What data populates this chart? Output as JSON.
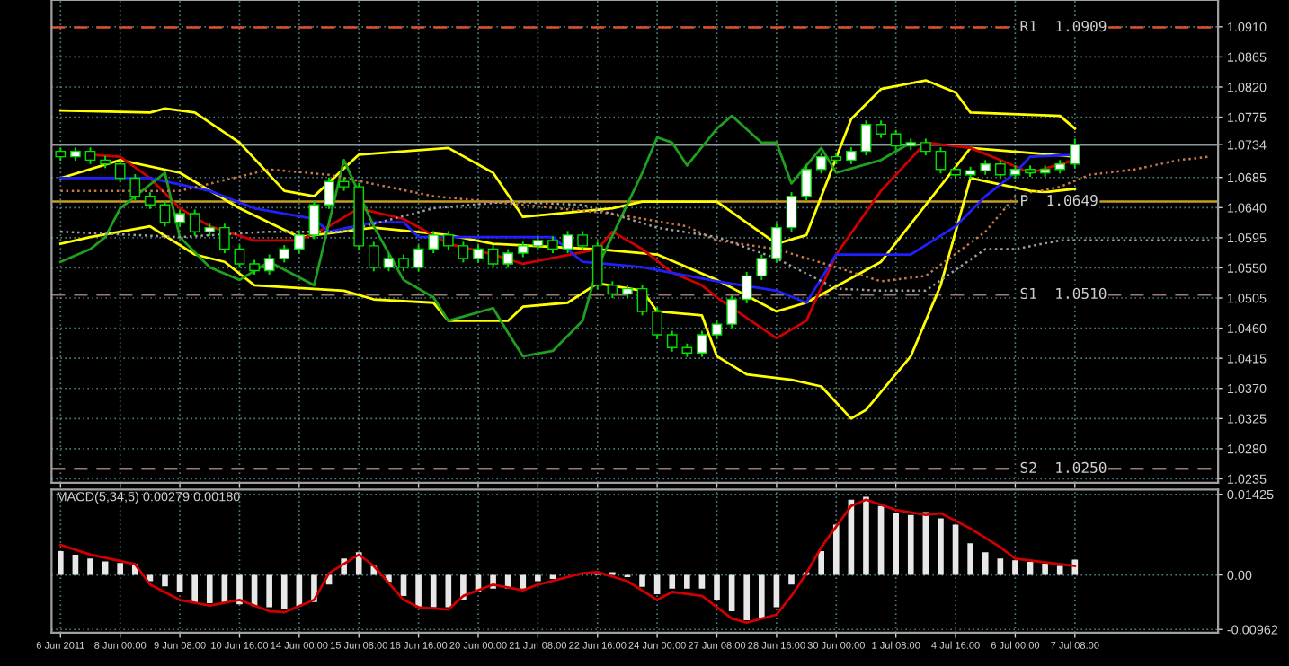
{
  "chart_data": [
    {
      "type": "candlestick",
      "categories": [
        null,
        null,
        null,
        null,
        null,
        null,
        null,
        null,
        null,
        null,
        null,
        null,
        null,
        null,
        null,
        null,
        null,
        null,
        null,
        null,
        null,
        null,
        null,
        null,
        null,
        null,
        null,
        null,
        null,
        null,
        null,
        null,
        null,
        null,
        null,
        null,
        null,
        null,
        null,
        null,
        null,
        null,
        null,
        null,
        null,
        null,
        null,
        null,
        null,
        null,
        null,
        null,
        null,
        null,
        null,
        null,
        null,
        null,
        null,
        null,
        null,
        null,
        null,
        null,
        null,
        null,
        null,
        null,
        null,
        null,
        null,
        null,
        null,
        null,
        null,
        null,
        null,
        null
      ],
      "ohlc": [
        [
          1.0724,
          1.073,
          1.071,
          1.0716
        ],
        [
          1.0716,
          1.073,
          1.071,
          1.0724
        ],
        [
          1.0724,
          1.073,
          1.0705,
          1.0711
        ],
        [
          1.0711,
          1.0717,
          1.0699,
          1.0705
        ],
        [
          1.0705,
          1.0711,
          1.0678,
          1.0684
        ],
        [
          1.0684,
          1.069,
          1.0651,
          1.0657
        ],
        [
          1.0657,
          1.0663,
          1.0638,
          1.0644
        ],
        [
          1.0644,
          1.065,
          1.0612,
          1.0618
        ],
        [
          1.0618,
          1.0637,
          1.0612,
          1.0631
        ],
        [
          1.0631,
          1.0637,
          1.0598,
          1.0604
        ],
        [
          1.0604,
          1.0616,
          1.0598,
          1.061
        ],
        [
          1.061,
          1.0616,
          1.0572,
          1.0578
        ],
        [
          1.0578,
          1.0584,
          1.055,
          1.0556
        ],
        [
          1.0556,
          1.0562,
          1.054,
          1.0546
        ],
        [
          1.0546,
          1.057,
          1.054,
          1.0564
        ],
        [
          1.0564,
          1.0584,
          1.0558,
          1.0578
        ],
        [
          1.0578,
          1.0605,
          1.0572,
          1.0599
        ],
        [
          1.0599,
          1.065,
          1.0593,
          1.0644
        ],
        [
          1.0644,
          1.0685,
          1.0638,
          1.0679
        ],
        [
          1.0679,
          1.0685,
          1.0665,
          1.0671
        ],
        [
          1.0671,
          1.0677,
          1.0577,
          1.0583
        ],
        [
          1.0583,
          1.0589,
          1.0545,
          1.0551
        ],
        [
          1.0551,
          1.057,
          1.0545,
          1.0564
        ],
        [
          1.0564,
          1.057,
          1.0545,
          1.0551
        ],
        [
          1.0551,
          1.0584,
          1.0545,
          1.0578
        ],
        [
          1.0578,
          1.0605,
          1.0572,
          1.0599
        ],
        [
          1.0599,
          1.0605,
          1.0577,
          1.0583
        ],
        [
          1.0583,
          1.0589,
          1.0558,
          1.0564
        ],
        [
          1.0564,
          1.0584,
          1.0558,
          1.0578
        ],
        [
          1.0578,
          1.0584,
          1.055,
          1.0556
        ],
        [
          1.0556,
          1.0578,
          1.055,
          1.0572
        ],
        [
          1.0572,
          1.0589,
          1.0566,
          1.0583
        ],
        [
          1.0583,
          1.0597,
          1.0577,
          1.0591
        ],
        [
          1.0591,
          1.0597,
          1.0572,
          1.0578
        ],
        [
          1.0578,
          1.0605,
          1.0572,
          1.0599
        ],
        [
          1.0599,
          1.0605,
          1.0577,
          1.0583
        ],
        [
          1.0583,
          1.0589,
          1.0518,
          1.0524
        ],
        [
          1.0524,
          1.053,
          1.0505,
          1.0511
        ],
        [
          1.0511,
          1.0525,
          1.0505,
          1.0519
        ],
        [
          1.0519,
          1.0525,
          1.0479,
          1.0485
        ],
        [
          1.0485,
          1.0491,
          1.0444,
          1.045
        ],
        [
          1.045,
          1.0456,
          1.0425,
          1.0431
        ],
        [
          1.0431,
          1.0437,
          1.0417,
          1.0423
        ],
        [
          1.0423,
          1.0456,
          1.0417,
          1.045
        ],
        [
          1.045,
          1.0472,
          1.0444,
          1.0466
        ],
        [
          1.0466,
          1.0509,
          1.046,
          1.0503
        ],
        [
          1.0503,
          1.0544,
          1.0497,
          1.0538
        ],
        [
          1.0538,
          1.057,
          1.0532,
          1.0564
        ],
        [
          1.0564,
          1.0616,
          1.0558,
          1.061
        ],
        [
          1.061,
          1.0663,
          1.0604,
          1.0657
        ],
        [
          1.0657,
          1.0703,
          1.0651,
          1.0697
        ],
        [
          1.0697,
          1.0722,
          1.0691,
          1.0716
        ],
        [
          1.0716,
          1.0722,
          1.0705,
          1.0711
        ],
        [
          1.0711,
          1.073,
          1.0705,
          1.0724
        ],
        [
          1.0724,
          1.077,
          1.0718,
          1.0764
        ],
        [
          1.0764,
          1.077,
          1.0744,
          1.075
        ],
        [
          1.075,
          1.0756,
          1.0726,
          1.0732
        ],
        [
          1.0732,
          1.0743,
          1.0726,
          1.0737
        ],
        [
          1.0737,
          1.0743,
          1.0718,
          1.0724
        ],
        [
          1.0724,
          1.073,
          1.0691,
          1.0697
        ],
        [
          1.0697,
          1.0703,
          1.0683,
          1.0689
        ],
        [
          1.0689,
          1.0701,
          1.0683,
          1.0695
        ],
        [
          1.0695,
          1.0711,
          1.0689,
          1.0705
        ],
        [
          1.0705,
          1.0711,
          1.0683,
          1.0689
        ],
        [
          1.0689,
          1.0703,
          1.0683,
          1.0697
        ],
        [
          1.0697,
          1.0703,
          1.0686,
          1.0692
        ],
        [
          1.0692,
          1.0703,
          1.0686,
          1.0697
        ],
        [
          1.0697,
          1.0711,
          1.0691,
          1.0705
        ],
        [
          1.0705,
          1.0743,
          1.0699,
          1.0734
        ],
        null,
        null,
        null,
        null,
        null,
        null,
        null,
        null,
        null
      ],
      "series": [
        {
          "type": "line",
          "color": "#ffff00",
          "values": [
            1.0785,
            null,
            null,
            null,
            null,
            null,
            1.0782,
            1.0788,
            null,
            1.0782,
            null,
            null,
            1.0737,
            null,
            null,
            1.0665,
            null,
            1.0657,
            null,
            null,
            1.0719,
            null,
            null,
            null,
            null,
            null,
            1.0729,
            null,
            null,
            1.0692,
            null,
            1.0626,
            null,
            null,
            null,
            null,
            null,
            1.0639,
            null,
            1.0649,
            null,
            null,
            null,
            null,
            1.0649,
            null,
            null,
            null,
            1.0586,
            null,
            1.0599,
            null,
            null,
            1.0772,
            null,
            1.0817,
            null,
            null,
            1.083,
            null,
            1.0812,
            1.0782,
            null,
            null,
            null,
            null,
            null,
            1.0777,
            1.0758,
            null,
            null,
            null,
            null,
            null,
            null,
            null,
            null,
            null
          ]
        },
        {
          "type": "line",
          "color": "#ffff00",
          "values": [
            1.0684,
            null,
            null,
            null,
            1.0711,
            null,
            null,
            null,
            1.0692,
            null,
            null,
            null,
            1.0639,
            null,
            null,
            null,
            1.0596,
            null,
            null,
            null,
            null,
            1.061,
            null,
            null,
            null,
            null,
            1.0599,
            null,
            null,
            1.0586,
            null,
            null,
            null,
            null,
            null,
            null,
            1.0578,
            null,
            null,
            null,
            1.057,
            null,
            null,
            null,
            1.0532,
            null,
            null,
            null,
            1.0485,
            null,
            1.0498,
            null,
            null,
            null,
            null,
            1.0559,
            null,
            null,
            null,
            null,
            null,
            1.0729,
            null,
            null,
            null,
            null,
            null,
            null,
            1.0716,
            null,
            null,
            null,
            null,
            null,
            null,
            null,
            null,
            null
          ]
        },
        {
          "type": "line",
          "color": "#ffff00",
          "values": [
            1.0586,
            null,
            1.0596,
            null,
            null,
            null,
            1.0612,
            null,
            null,
            1.057,
            null,
            1.0559,
            null,
            1.0524,
            null,
            null,
            null,
            null,
            null,
            1.0516,
            null,
            1.0503,
            null,
            null,
            null,
            1.0498,
            1.0471,
            null,
            null,
            null,
            1.0471,
            1.0492,
            null,
            null,
            1.0498,
            null,
            1.0527,
            null,
            null,
            1.0516,
            1.0485,
            null,
            null,
            1.0479,
            1.0418,
            null,
            1.0391,
            null,
            null,
            1.0383,
            null,
            1.0373,
            null,
            1.0325,
            1.0338,
            null,
            null,
            1.0418,
            null,
            1.0524,
            null,
            1.0684,
            null,
            null,
            null,
            1.0665,
            1.0663,
            null,
            1.0668,
            null,
            null,
            null,
            null,
            null,
            null,
            null,
            null,
            null
          ]
        },
        {
          "type": "line",
          "color": "#d00000",
          "values": [
            null,
            null,
            1.0719,
            null,
            1.0716,
            null,
            1.0684,
            null,
            1.0639,
            null,
            1.0612,
            null,
            null,
            1.0591,
            null,
            null,
            1.0591,
            null,
            1.0612,
            null,
            1.0639,
            null,
            null,
            1.0623,
            null,
            null,
            1.0586,
            null,
            null,
            1.057,
            null,
            1.0556,
            null,
            null,
            null,
            null,
            1.0578,
            1.0604,
            null,
            1.0578,
            null,
            1.0543,
            null,
            1.0524,
            1.0506,
            null,
            null,
            null,
            1.0445,
            null,
            1.0471,
            null,
            1.057,
            null,
            null,
            1.0665,
            null,
            null,
            1.0737,
            null,
            null,
            1.0729,
            null,
            1.0711,
            null,
            1.0692,
            null,
            null,
            1.0711,
            null,
            null,
            null,
            null,
            null,
            null,
            null,
            null,
            null
          ]
        },
        {
          "type": "line",
          "color": "#2020ff",
          "values": [
            1.0684,
            null,
            null,
            null,
            null,
            null,
            1.0684,
            null,
            null,
            null,
            1.0665,
            null,
            null,
            1.0639,
            null,
            null,
            null,
            1.0623,
            1.0604,
            null,
            null,
            1.0618,
            null,
            1.0618,
            1.0596,
            null,
            null,
            null,
            null,
            null,
            null,
            null,
            null,
            1.0596,
            null,
            1.0559,
            null,
            null,
            null,
            1.0551,
            null,
            null,
            null,
            null,
            1.053,
            null,
            null,
            null,
            1.0516,
            null,
            1.0498,
            null,
            1.057,
            null,
            null,
            null,
            null,
            1.057,
            null,
            null,
            1.0612,
            null,
            1.0657,
            null,
            1.0692,
            1.0716,
            null,
            null,
            1.0719,
            null,
            null,
            null,
            null,
            null,
            null,
            null,
            null,
            null
          ]
        },
        {
          "type": "line",
          "color": "#1fa01f",
          "values": [
            1.0559,
            null,
            1.0578,
            1.0596,
            1.0639,
            null,
            null,
            1.0692,
            1.0596,
            null,
            1.0551,
            null,
            1.0532,
            null,
            1.0559,
            null,
            null,
            1.0524,
            null,
            1.0711,
            null,
            1.0612,
            null,
            1.0532,
            null,
            1.0506,
            1.0471,
            null,
            null,
            1.049,
            1.0453,
            1.0418,
            null,
            1.0426,
            null,
            1.0471,
            1.0551,
            null,
            null,
            1.0692,
            1.0745,
            1.0737,
            1.0703,
            null,
            1.0758,
            1.0777,
            null,
            1.0737,
            1.0737,
            1.0676,
            1.0703,
            1.0729,
            1.0692,
            null,
            null,
            1.0711,
            null,
            1.0737,
            null,
            null,
            null,
            null,
            null,
            null,
            null,
            null,
            null,
            null,
            null,
            null,
            null,
            null,
            null,
            null,
            null,
            null,
            null,
            null
          ]
        },
        {
          "type": "line",
          "color": "#c8784a",
          "line_style": "dotted",
          "values": [
            1.0665,
            null,
            null,
            null,
            null,
            null,
            null,
            null,
            1.0665,
            null,
            null,
            null,
            null,
            null,
            1.0697,
            null,
            null,
            null,
            1.0689,
            null,
            null,
            null,
            null,
            null,
            null,
            1.0657,
            null,
            null,
            null,
            null,
            null,
            1.0644,
            null,
            null,
            null,
            null,
            null,
            1.0631,
            null,
            null,
            null,
            null,
            1.0612,
            null,
            1.0591,
            null,
            null,
            null,
            1.0578,
            null,
            null,
            null,
            1.0551,
            null,
            null,
            1.053,
            null,
            null,
            1.0538,
            null,
            null,
            null,
            1.0604,
            null,
            1.0657,
            null,
            null,
            1.0671,
            null,
            1.0689,
            null,
            null,
            1.0697,
            null,
            null,
            1.0711,
            null,
            1.0716
          ]
        },
        {
          "type": "line",
          "color": "#a0a0a0",
          "line_style": "dotted",
          "values": [
            1.0604,
            null,
            null,
            null,
            null,
            null,
            null,
            null,
            1.0596,
            null,
            null,
            null,
            null,
            null,
            1.0604,
            null,
            null,
            null,
            null,
            1.0604,
            null,
            null,
            null,
            null,
            null,
            1.0639,
            null,
            null,
            null,
            null,
            1.0649,
            null,
            null,
            null,
            null,
            1.0644,
            null,
            null,
            null,
            null,
            1.061,
            null,
            null,
            null,
            1.0596,
            null,
            null,
            null,
            1.0564,
            null,
            null,
            null,
            1.0519,
            null,
            null,
            1.0516,
            null,
            null,
            1.0516,
            null,
            null,
            null,
            1.0578,
            null,
            1.0578,
            null,
            null,
            1.0591,
            null,
            null,
            null,
            null,
            null,
            null,
            null,
            null,
            null,
            1.0591
          ]
        }
      ],
      "ref_lines": [
        {
          "axis": "y",
          "value": 1.0909,
          "label": "R1  1.0909",
          "color": "#e0502a",
          "line_style": "dashed"
        },
        {
          "axis": "y",
          "value": 1.0734,
          "color": "#8a9a9a",
          "line_style": "solid"
        },
        {
          "axis": "y",
          "value": 1.0649,
          "label": "P  1.0649",
          "color": "#c8a020",
          "line_style": "solid"
        },
        {
          "axis": "y",
          "value": 1.051,
          "label": "S1  1.0510",
          "color": "#9a7a70",
          "line_style": "dashed"
        },
        {
          "axis": "y",
          "value": 1.025,
          "label": "S2  1.0250",
          "color": "#9a7a70",
          "line_style": "dashed"
        }
      ],
      "ylim": [
        1.0229,
        1.095
      ],
      "yticks": [
        {
          "value": 1.091,
          "label": "1.0910"
        },
        {
          "value": 1.0865,
          "label": "1.0865"
        },
        {
          "value": 1.082,
          "label": "1.0820"
        },
        {
          "value": 1.0775,
          "label": "1.0775"
        },
        {
          "value": 1.0734,
          "label": "1.0734"
        },
        {
          "value": 1.0685,
          "label": "1.0685"
        },
        {
          "value": 1.064,
          "label": "1.0640"
        },
        {
          "value": 1.0595,
          "label": "1.0595"
        },
        {
          "value": 1.055,
          "label": "1.0550"
        },
        {
          "value": 1.0505,
          "label": "1.0505"
        },
        {
          "value": 1.046,
          "label": "1.0460"
        },
        {
          "value": 1.0415,
          "label": "1.0415"
        },
        {
          "value": 1.037,
          "label": "1.0370"
        },
        {
          "value": 1.0325,
          "label": "1.0325"
        },
        {
          "value": 1.028,
          "label": "1.0280"
        },
        {
          "value": 1.0235,
          "label": "1.0235"
        }
      ],
      "tick_labels": "y",
      "grid": true
    },
    {
      "type": "bar",
      "annotations": [
        "MACD(5,34,5) 0.00279 0.00180"
      ],
      "categories": [
        "6 Jun 2011",
        null,
        null,
        null,
        "8 Jun 00:00",
        null,
        null,
        null,
        "9 Jun 08:00",
        null,
        null,
        null,
        "10 Jun 16:00",
        null,
        null,
        null,
        "14 Jun 00:00",
        null,
        null,
        null,
        "15 Jun 08:00",
        null,
        null,
        null,
        "16 Jun 16:00",
        null,
        null,
        null,
        "20 Jun 00:00",
        null,
        null,
        null,
        "21 Jun 08:00",
        null,
        null,
        null,
        "22 Jun 16:00",
        null,
        null,
        null,
        "24 Jun 00:00",
        null,
        null,
        null,
        "27 Jun 08:00",
        null,
        null,
        null,
        "28 Jun 16:00",
        null,
        null,
        null,
        "30 Jun 00:00",
        null,
        null,
        null,
        "1 Jul 08:00",
        null,
        null,
        null,
        "4 Jul 16:00",
        null,
        null,
        null,
        "6 Jul 00:00",
        null,
        null,
        null,
        "7 Jul 08:00",
        null,
        null,
        null,
        null,
        null,
        null,
        null,
        null,
        null
      ],
      "series": [
        {
          "type": "bar",
          "color": "#e8e8e8",
          "values": [
            0.0042,
            0.0036,
            0.0029,
            0.0024,
            0.0021,
            0.0019,
            -0.0011,
            -0.002,
            -0.003,
            -0.005,
            -0.005,
            -0.0048,
            -0.0052,
            -0.0055,
            -0.0057,
            -0.0061,
            -0.0055,
            -0.0048,
            -0.0017,
            0.0029,
            0.004,
            0.0016,
            -0.0012,
            -0.0037,
            -0.0057,
            -0.0057,
            -0.0057,
            -0.0044,
            -0.003,
            -0.0024,
            -0.0024,
            -0.0024,
            -0.0011,
            -0.0007,
            null,
            null,
            0.0005,
            0.0005,
            -0.0004,
            -0.0021,
            -0.0034,
            -0.0024,
            -0.0024,
            -0.0024,
            -0.0045,
            -0.0064,
            -0.008,
            -0.0077,
            -0.0057,
            -0.0017,
            0.0005,
            0.0042,
            0.0089,
            0.0133,
            0.0138,
            0.0122,
            0.0109,
            0.0106,
            0.0111,
            0.01,
            0.0089,
            0.0056,
            0.004,
            0.0029,
            0.0026,
            0.0023,
            0.002,
            0.0016,
            0.0027,
            null,
            null,
            null,
            null,
            null,
            null,
            null,
            null,
            null
          ]
        },
        {
          "type": "line",
          "color": "#d00000",
          "values": [
            0.0053,
            null,
            0.0036,
            null,
            null,
            0.0019,
            -0.0017,
            null,
            -0.0044,
            null,
            -0.0054,
            null,
            -0.0044,
            null,
            -0.0064,
            -0.0066,
            null,
            -0.0044,
            0.0003,
            null,
            0.0036,
            0.0016,
            null,
            -0.0044,
            -0.0057,
            null,
            -0.0061,
            -0.0037,
            null,
            -0.0017,
            null,
            -0.0027,
            -0.0017,
            null,
            null,
            0.0003,
            0.0005,
            null,
            -0.0011,
            null,
            -0.0044,
            -0.003,
            null,
            -0.0037,
            null,
            -0.0077,
            -0.0084,
            null,
            -0.007,
            -0.0037,
            0.0003,
            0.0049,
            null,
            0.0122,
            0.0133,
            null,
            0.0115,
            null,
            0.0106,
            0.0109,
            null,
            0.0082,
            null,
            0.0049,
            0.0029,
            null,
            null,
            0.0019,
            0.0016,
            null,
            null,
            null,
            null,
            null,
            null,
            null,
            null,
            null
          ]
        }
      ],
      "ylim": [
        -0.0102,
        0.0151
      ],
      "yticks": [
        {
          "value": 0.01425,
          "label": "0.01425"
        },
        {
          "value": 0,
          "label": "0.00"
        },
        {
          "value": -0.00962,
          "label": "-0.00962"
        }
      ],
      "grid": true
    }
  ]
}
